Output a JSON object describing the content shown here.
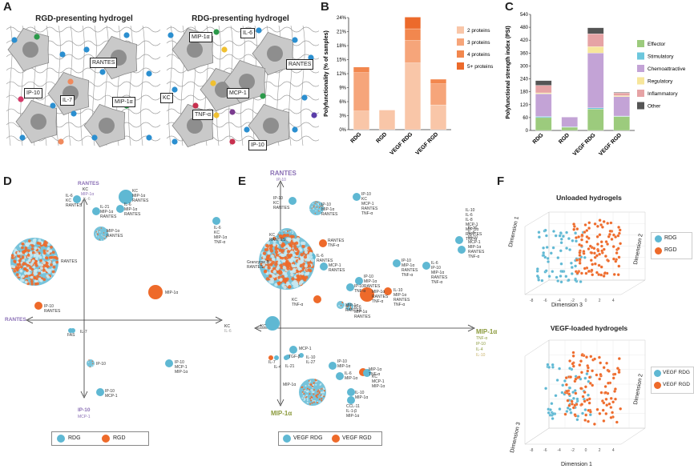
{
  "panels": {
    "A": "A",
    "B": "B",
    "C": "C",
    "D": "D",
    "E": "E",
    "F": "F"
  },
  "panelA": {
    "title_left": "RGD-presenting hydrogel",
    "title_right": "RDG-presenting hydrogel",
    "left_labels": [
      "RANTES",
      "IP-10",
      "IL-7",
      "MIP-1α"
    ],
    "right_labels": [
      "MIP-1α",
      "IL-6",
      "RANTES",
      "KC",
      "MCP-1",
      "TNF-α",
      "IP-10"
    ]
  },
  "chart_data": [
    {
      "id": "B",
      "type": "bar",
      "stacked": true,
      "categories": [
        "RDG",
        "RGD",
        "VEGF RDG",
        "VEGF RGD"
      ],
      "ylabel": "Polyfunctionality (% of samples)",
      "ylim": [
        0,
        24
      ],
      "yticks": [
        "0%",
        "3%",
        "6%",
        "9%",
        "12%",
        "15%",
        "18%",
        "21%",
        "24%"
      ],
      "series": [
        {
          "name": "2 proteins",
          "color": "#f9c6a8",
          "values": [
            4,
            4.2,
            14.3,
            5.3
          ]
        },
        {
          "name": "3 proteins",
          "color": "#f6a57a",
          "values": [
            8.2,
            0,
            4.8,
            4.5
          ]
        },
        {
          "name": "4 proteins",
          "color": "#f2874e",
          "values": [
            1.2,
            0,
            2.5,
            1.0
          ]
        },
        {
          "name": "5+ proteins",
          "color": "#ec6a2b",
          "values": [
            0,
            0,
            2.5,
            0
          ]
        }
      ]
    },
    {
      "id": "C",
      "type": "bar",
      "stacked": true,
      "categories": [
        "RDG",
        "RGD",
        "VEGF RDG",
        "VEGF RGD"
      ],
      "ylabel": "Polyfunctional strength index (PSI)",
      "ylim": [
        0,
        540
      ],
      "yticks": [
        "0",
        "60",
        "120",
        "180",
        "240",
        "300",
        "360",
        "420",
        "480",
        "540"
      ],
      "series": [
        {
          "name": "Effector",
          "color": "#9ccb7d",
          "values": [
            60,
            15,
            100,
            65
          ]
        },
        {
          "name": "Stimulatory",
          "color": "#6cc7dd",
          "values": [
            5,
            2,
            5,
            2
          ]
        },
        {
          "name": "Chemoattractive",
          "color": "#c3a3d6",
          "values": [
            105,
            45,
            255,
            90
          ]
        },
        {
          "name": "Regulatory",
          "color": "#f7e69b",
          "values": [
            5,
            0,
            30,
            5
          ]
        },
        {
          "name": "Inflammatory",
          "color": "#e6a3a5",
          "values": [
            35,
            0,
            60,
            13
          ]
        },
        {
          "name": "Other",
          "color": "#555555",
          "values": [
            22,
            0,
            28,
            3
          ]
        }
      ]
    },
    {
      "id": "D",
      "type": "scatter",
      "axes": {
        "top": "RANTES",
        "top_sub": "KC",
        "top_sub2": "MIP-1α",
        "top_sub3": "IL-6",
        "left": "RANTES",
        "bottom": "IP-10",
        "bottom_sub": "MCP-1",
        "right_sub": "KC",
        "right_sub2": "IL-6"
      },
      "legend": [
        "RDG",
        "RGD"
      ],
      "points": [
        {
          "label": "IL-6\nKC\nRANTES",
          "group": "RDG",
          "size": "small"
        },
        {
          "label": "KC\nMIP-1α\nRANTES",
          "group": "RDG",
          "size": "medium"
        },
        {
          "label": "IL-21\nMIP-1α\nRANTES",
          "group": "RDG",
          "size": "small"
        },
        {
          "label": "IL-6\nMIP-1α\nRANTES",
          "group": "RDG",
          "size": "small"
        },
        {
          "label": "MIP-1α\nRANTES",
          "group": "mixed",
          "size": "medium"
        },
        {
          "label": "IL-6\nKC\nMIP-1α\nTNF-α",
          "group": "RDG",
          "size": "small"
        },
        {
          "label": "RANTES",
          "group": "mixed",
          "size": "large"
        },
        {
          "label": "MIP-1α",
          "group": "RGD",
          "size": "medium"
        },
        {
          "label": "IP-10\nRANTES",
          "group": "RGD",
          "size": "small"
        },
        {
          "label": "FAS",
          "group": "RDG",
          "size": "tiny"
        },
        {
          "label": "IL-7",
          "group": "RDG",
          "size": "tiny"
        },
        {
          "label": "IP-10",
          "group": "mixed",
          "size": "small"
        },
        {
          "label": "IP-10\nMCP-1\nMIP-1α",
          "group": "RDG",
          "size": "small"
        },
        {
          "label": "IP-10\nMCP-1",
          "group": "RDG",
          "size": "small"
        }
      ]
    },
    {
      "id": "E",
      "type": "scatter",
      "axes": {
        "top": "RANTES",
        "top_sub": "IP-10",
        "bottom": "MIP-1α",
        "right": "MIP-1α",
        "right_sub": "TNF-α",
        "right_sub2": "IP-10",
        "right_sub3": "IL-4",
        "right_sub4": "IL-10"
      },
      "legend": [
        "VEGF RDG",
        "VEGF RGD"
      ],
      "points": [
        {
          "label": "IP-10\nKC\nRANTES",
          "group": "VEGF RDG",
          "size": "small"
        },
        {
          "label": "IP-10\nMIP-1α\nRANTES",
          "group": "mixed",
          "size": "medium"
        },
        {
          "label": "IP-10\nKC\nMCP-1\nRANTES\nTNF-α",
          "group": "VEGF RDG",
          "size": "small"
        },
        {
          "label": "KC\nRANTES",
          "group": "mixed",
          "size": "large"
        },
        {
          "label": "RANTES\nTNF-α",
          "group": "VEGF RGD",
          "size": "small"
        },
        {
          "label": "IL-6\nRANTES",
          "group": "VEGF RDG",
          "size": "small"
        },
        {
          "label": "MCP-1\nRANTES",
          "group": "VEGF RDG",
          "size": "small"
        },
        {
          "label": "Granzyme B\nRANTES",
          "group": "mixed",
          "size": "large"
        },
        {
          "label": "IL-10\nIL-6\nIP-10\nMCP-1\nMIP-1α\nRANTES\nTNF-α",
          "group": "VEGF RDG",
          "size": "small"
        },
        {
          "label": "IP-10\nMIP-1α\nRANTES\nTNF-α",
          "group": "VEGF RDG",
          "size": "small"
        },
        {
          "label": "IL-6\nIP-10\nMIP-1α\nRANTES\nTNF-α",
          "group": "VEGF RDG",
          "size": "small"
        },
        {
          "label": "IL-10\nIL-6\nIL-8\nMCP-1\nMIP-1α\nRANTES\nTNF-α",
          "group": "VEGF RDG",
          "size": "small"
        },
        {
          "label": "IP-10\nMIP-1α\nRANTES",
          "group": "VEGF RDG",
          "size": "small"
        },
        {
          "label": "IP-10\nTNF-α",
          "group": "VEGF RDG",
          "size": "small"
        },
        {
          "label": "MIP-1α\nRANTES\nTNF-α",
          "group": "VEGF RGD",
          "size": "medium"
        },
        {
          "label": "IL-10\nMIP-1α\nRANTES\nTNF-α",
          "group": "VEGF RGD",
          "size": "small"
        },
        {
          "label": "KC\nTNF-α",
          "group": "VEGF RGD",
          "size": "small"
        },
        {
          "label": "MIP-1α\nRANTES",
          "group": "mixed",
          "size": "small"
        },
        {
          "label": "IL-6\nMIP-1α\nRANTES",
          "group": "mixed",
          "size": "small"
        },
        {
          "label": "KC",
          "group": "VEGF RDG",
          "size": "medium"
        },
        {
          "label": "MCP-1",
          "group": "VEGF RDG",
          "size": "small"
        },
        {
          "label": "IL-7",
          "group": "VEGF RGD",
          "size": "tiny"
        },
        {
          "label": "IL-4",
          "group": "VEGF RDG",
          "size": "tiny"
        },
        {
          "label": "TGF-β",
          "group": "VEGF RDG",
          "size": "tiny"
        },
        {
          "label": "IL-21",
          "group": "VEGF RDG",
          "size": "tiny"
        },
        {
          "label": "IL-10\nIL-27",
          "group": "VEGF RDG",
          "size": "tiny"
        },
        {
          "label": "IP-10\nMIP-1α",
          "group": "VEGF RDG",
          "size": "small"
        },
        {
          "label": "MIP-1α\nTNF-α",
          "group": "VEGF RGD",
          "size": "small"
        },
        {
          "label": "IL-6\nMIP-1α",
          "group": "VEGF RDG",
          "size": "small"
        },
        {
          "label": "KC\nMCP-1\nMIP-1α",
          "group": "VEGF RDG",
          "size": "small"
        },
        {
          "label": "IL-10\nMIP-1α",
          "group": "VEGF RDG",
          "size": "small"
        },
        {
          "label": "MIP-1α",
          "group": "mixed",
          "size": "large"
        },
        {
          "label": "CCL-11\nIL-1-β\nMIP-1α",
          "group": "VEGF RDG",
          "size": "small"
        }
      ]
    },
    {
      "id": "F1",
      "type": "scatter",
      "title": "Unloaded hydrogels",
      "xlabel": "Dimension 3",
      "ylabel": "Dimension 1",
      "zlabel": "Dimension 2",
      "legend": [
        "RDG",
        "RGD"
      ]
    },
    {
      "id": "F2",
      "type": "scatter",
      "title": "VEGF-loaded hydrogels",
      "xlabel": "Dimension 1",
      "ylabel": "Dimension 3",
      "zlabel": "Dimension 2",
      "legend": [
        "VEGF RDG",
        "VEGF RGD"
      ]
    }
  ],
  "colors": {
    "blue": "#5fb8d3",
    "orange": "#ee6a2a"
  }
}
